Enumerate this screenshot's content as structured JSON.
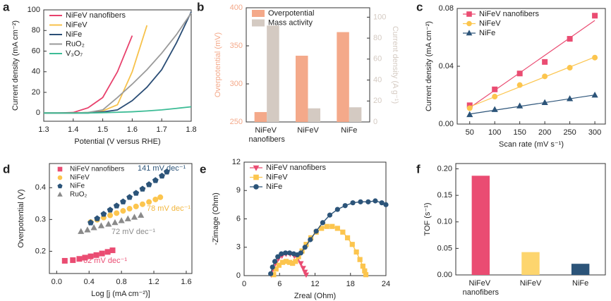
{
  "chart_data": [
    {
      "type": "line",
      "panel_label": "a",
      "xlabel": "Potential (V versus RHE)",
      "ylabel": "Current density (mA cm⁻²)",
      "xlim": [
        1.3,
        1.8
      ],
      "ylim": [
        -8,
        100
      ],
      "xticks": [
        1.3,
        1.4,
        1.5,
        1.6,
        1.7,
        1.8
      ],
      "yticks": [
        0,
        20,
        40,
        60,
        80,
        100
      ],
      "legend": "upper left",
      "x": [
        1.3,
        1.35,
        1.4,
        1.45,
        1.5,
        1.55,
        1.6,
        1.65,
        1.7,
        1.75,
        1.8
      ],
      "series": [
        {
          "name": "NiFeV nanofibers",
          "color": "#e8416c",
          "values": [
            0,
            0,
            0.5,
            5,
            15,
            40,
            75,
            null,
            null,
            null,
            null
          ]
        },
        {
          "name": "NiFeV",
          "color": "#f7c24b",
          "values": [
            0,
            0,
            0,
            0.5,
            2,
            8,
            40,
            85,
            null,
            null,
            null
          ]
        },
        {
          "name": "NiFe",
          "color": "#2b4e76",
          "values": [
            0,
            0,
            0,
            0,
            1,
            3,
            12,
            25,
            42,
            68,
            98
          ]
        },
        {
          "name": "RuO₂",
          "color": "#9a9a9a",
          "values": [
            0,
            0,
            0,
            0.5,
            3,
            15,
            28,
            42,
            58,
            76,
            97
          ]
        },
        {
          "name": "V₃O₇",
          "color": "#3dbc96",
          "values": [
            0,
            0,
            0,
            0,
            0.3,
            0.7,
            1.2,
            2,
            3,
            4.5,
            6
          ]
        }
      ]
    },
    {
      "type": "bar",
      "panel_label": "b",
      "ylabel": "Overpotential (mV)",
      "y2label": "Current density (A g⁻¹)",
      "ylim": [
        250,
        400
      ],
      "yticks": [
        250,
        300,
        350,
        400
      ],
      "y2lim": [
        0,
        109
      ],
      "y2ticks": [
        0,
        20,
        40,
        60,
        80,
        100
      ],
      "legend": "upper left",
      "categories": [
        "NiFeV nanofibers",
        "NiFeV",
        "NiFe"
      ],
      "series": [
        {
          "name": "Overpotential",
          "color": "#f4a98a",
          "values": [
            263,
            337,
            368
          ]
        },
        {
          "name": "Mass activity",
          "color": "#d4cac2",
          "axis": "y2",
          "values": [
            92,
            13,
            14
          ]
        }
      ]
    },
    {
      "type": "scatter",
      "panel_label": "c",
      "xlabel": "Scan rate (mV s⁻¹)",
      "ylabel": "Current density (mA cm⁻²)",
      "fit": true,
      "xlim": [
        25,
        321
      ],
      "ylim": [
        0,
        0.08
      ],
      "xticks": [
        50,
        100,
        150,
        200,
        250,
        300
      ],
      "yticks": [
        {
          "value": 0,
          "label": "0.00"
        },
        {
          "value": 0.04,
          "label": "0.04"
        },
        {
          "value": 0.08,
          "label": "0.08"
        }
      ],
      "legend": "upper left",
      "series": [
        {
          "name": "NiFeV nanofibers",
          "color": "#ea4c72",
          "marker": "square",
          "x": [
            50,
            100,
            150,
            200,
            250,
            300
          ],
          "values": [
            0.013,
            0.024,
            0.035,
            0.043,
            0.059,
            0.075
          ]
        },
        {
          "name": "NiFeV",
          "color": "#fcc54e",
          "marker": "circle",
          "x": [
            50,
            100,
            150,
            200,
            250,
            300
          ],
          "values": [
            0.011,
            0.019,
            0.027,
            0.033,
            0.039,
            0.046
          ]
        },
        {
          "name": "NiFe",
          "color": "#2c5479",
          "marker": "triangle",
          "x": [
            50,
            100,
            150,
            200,
            250,
            300
          ],
          "values": [
            0.0065,
            0.01,
            0.0125,
            0.0148,
            0.0175,
            0.02
          ]
        }
      ]
    },
    {
      "type": "scatter",
      "panel_label": "d",
      "xlabel": "Log [j (mA cm⁻²)]",
      "ylabel": "Overpotential (V)",
      "xlim": [
        -0.09,
        1.67
      ],
      "ylim": [
        0.13,
        0.476
      ],
      "xticks": [
        {
          "value": 0,
          "label": "0.0"
        },
        0.4,
        0.8,
        1.2,
        1.6
      ],
      "yticks": [
        0.2,
        0.3,
        0.4
      ],
      "legend": "upper left",
      "annotations": [
        {
          "text": "141 mV dec⁻¹",
          "color": "#2c5479"
        },
        {
          "text": "78 mV dec⁻¹",
          "color": "#f2b53a"
        },
        {
          "text": "72 mV dec⁻¹",
          "color": "#8a8a8a"
        },
        {
          "text": "62 mV dec⁻¹",
          "color": "#ea4c72"
        }
      ],
      "series": [
        {
          "name": "NiFeV nanofibers",
          "color": "#ea4c72",
          "marker": "square",
          "x": [
            0.1,
            0.2,
            0.28,
            0.35,
            0.42,
            0.49,
            0.56,
            0.63,
            0.69
          ],
          "values": [
            0.17,
            0.172,
            0.176,
            0.18,
            0.184,
            0.188,
            0.193,
            0.198,
            0.203
          ]
        },
        {
          "name": "NiFeV",
          "color": "#fcc54e",
          "marker": "circle",
          "x": [
            0.42,
            0.5,
            0.58,
            0.66,
            0.74,
            0.82,
            0.9,
            0.98,
            1.06,
            1.14,
            1.22,
            1.28
          ],
          "values": [
            0.292,
            0.299,
            0.306,
            0.313,
            0.32,
            0.327,
            0.334,
            0.341,
            0.348,
            0.355,
            0.363,
            0.37
          ]
        },
        {
          "name": "NiFe",
          "color": "#2c5479",
          "marker": "pentagon",
          "x": [
            0.42,
            0.5,
            0.58,
            0.66,
            0.74,
            0.82,
            0.9,
            0.98,
            1.06,
            1.14,
            1.22,
            1.3,
            1.36
          ],
          "values": [
            0.29,
            0.303,
            0.317,
            0.33,
            0.343,
            0.356,
            0.37,
            0.383,
            0.396,
            0.41,
            0.423,
            0.437,
            0.45
          ]
        },
        {
          "name": "RuO₂",
          "color": "#8a8a8a",
          "marker": "triangle",
          "x": [
            0.3,
            0.38,
            0.46,
            0.55,
            0.64,
            0.72,
            0.8,
            0.88,
            0.96,
            1.04
          ],
          "values": [
            0.262,
            0.267,
            0.274,
            0.28,
            0.285,
            0.29,
            0.296,
            0.302,
            0.307,
            0.313
          ]
        }
      ]
    },
    {
      "type": "scatter",
      "panel_label": "e",
      "xlabel": "Zreal (Ohm)",
      "ylabel": "-Zimage (Ohm)",
      "connect": true,
      "xlim": [
        0,
        24
      ],
      "ylim": [
        0,
        12
      ],
      "xticks": [
        0,
        6,
        12,
        18,
        24
      ],
      "yticks": [
        0,
        3,
        6,
        9,
        12
      ],
      "legend": "upper left",
      "series": [
        {
          "name": "NiFeV nanofibers",
          "color": "#ea4c72",
          "marker": "triangle-down",
          "x": [
            4.6,
            4.9,
            5.3,
            5.8,
            6.4,
            7.1,
            7.8,
            8.5,
            9.1,
            9.6,
            10.0,
            10.3,
            10.5
          ],
          "values": [
            0.1,
            0.7,
            1.3,
            1.8,
            2.1,
            2.3,
            2.3,
            2.1,
            1.8,
            1.3,
            0.8,
            0.4,
            0.1
          ]
        },
        {
          "name": "NiFeV",
          "color": "#fcc54e",
          "marker": "square",
          "x": [
            5.0,
            5.4,
            5.9,
            6.5,
            7.1,
            7.7,
            8.2,
            8.7,
            9.2,
            9.8,
            10.5,
            11.3,
            12.2,
            13.1,
            14.0,
            14.9,
            15.8,
            16.7,
            17.5,
            18.3,
            19.0,
            19.6,
            20.1,
            20.4,
            20.6
          ],
          "values": [
            0.1,
            0.7,
            1.1,
            1.4,
            1.5,
            1.4,
            1.3,
            1.5,
            2.0,
            2.6,
            3.3,
            4.0,
            4.6,
            5.0,
            5.2,
            5.2,
            5.0,
            4.6,
            4.0,
            3.3,
            2.5,
            1.7,
            1.0,
            0.5,
            0.1
          ]
        },
        {
          "name": "NiFe",
          "color": "#2c5479",
          "marker": "circle",
          "x": [
            4.5,
            4.8,
            5.2,
            5.7,
            6.3,
            7.0,
            7.7,
            8.4,
            9.0,
            9.6,
            10.3,
            11.2,
            12.2,
            13.3,
            14.5,
            15.8,
            17.1,
            18.4,
            19.7,
            21.0,
            22.2,
            23.3,
            24.0
          ],
          "values": [
            0.2,
            0.9,
            1.5,
            2.0,
            2.3,
            2.4,
            2.4,
            2.3,
            2.2,
            2.4,
            3.0,
            3.8,
            4.7,
            5.6,
            6.4,
            7.0,
            7.4,
            7.7,
            7.8,
            7.8,
            7.9,
            7.7,
            7.5
          ]
        }
      ]
    },
    {
      "type": "bar",
      "panel_label": "f",
      "ylabel": "TOF (s⁻¹)",
      "ylim": [
        0,
        0.21
      ],
      "yticks": [
        {
          "value": 0,
          "label": "0.00"
        },
        {
          "value": 0.05,
          "label": "0.05"
        },
        {
          "value": 0.1,
          "label": "0.10"
        },
        {
          "value": 0.15,
          "label": "0.15"
        },
        {
          "value": 0.2,
          "label": "0.20"
        }
      ],
      "categories": [
        "NiFeV nanofibers",
        "NiFeV",
        "NiFe"
      ],
      "values": [
        0.187,
        0.043,
        0.021
      ],
      "colors": [
        "#ea4c72",
        "#fdd56e",
        "#2c5479"
      ]
    }
  ]
}
